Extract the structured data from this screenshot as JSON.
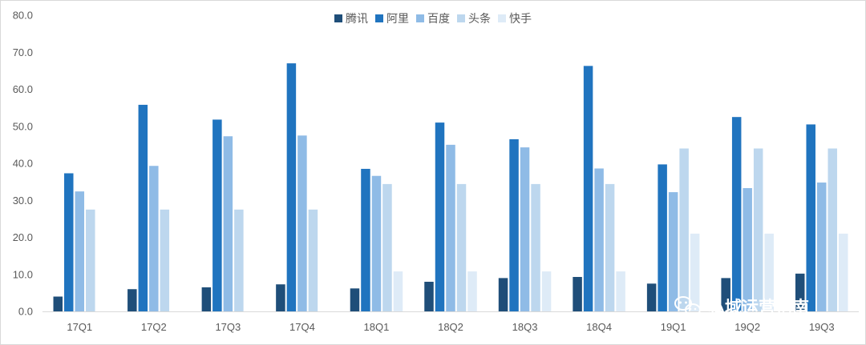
{
  "chart_data": {
    "type": "bar",
    "categories": [
      "17Q1",
      "17Q2",
      "17Q3",
      "17Q4",
      "18Q1",
      "18Q2",
      "18Q3",
      "18Q4",
      "19Q1",
      "19Q2",
      "19Q3"
    ],
    "series": [
      {
        "name": "腾讯",
        "color": "#1f4e79",
        "values": [
          4.0,
          6.0,
          6.5,
          7.3,
          6.2,
          8.0,
          9.0,
          9.3,
          7.5,
          9.0,
          10.2
        ]
      },
      {
        "name": "阿里",
        "color": "#2074bf",
        "values": [
          37.3,
          55.8,
          51.8,
          67.0,
          38.5,
          51.0,
          46.5,
          66.3,
          39.7,
          52.5,
          50.5
        ]
      },
      {
        "name": "百度",
        "color": "#8fbbe6",
        "values": [
          32.4,
          39.3,
          47.3,
          47.5,
          36.6,
          45.0,
          44.3,
          38.6,
          32.2,
          33.3,
          34.8
        ]
      },
      {
        "name": "头条",
        "color": "#bdd7ee",
        "values": [
          27.5,
          27.5,
          27.5,
          27.5,
          34.4,
          34.4,
          34.4,
          34.4,
          44.0,
          44.0,
          44.0
        ]
      },
      {
        "name": "快手",
        "color": "#deebf7",
        "values": [
          null,
          null,
          null,
          null,
          10.8,
          10.8,
          10.8,
          10.8,
          21.0,
          21.0,
          21.0
        ]
      }
    ],
    "y_ticks": [
      "0.0",
      "10.0",
      "20.0",
      "30.0",
      "40.0",
      "50.0",
      "60.0",
      "70.0",
      "80.0"
    ],
    "ylim": [
      0,
      80
    ],
    "grid": false,
    "legend_position": "top-center"
  },
  "watermark": {
    "text": "私域运营指南",
    "icon": "wechat-icon"
  }
}
